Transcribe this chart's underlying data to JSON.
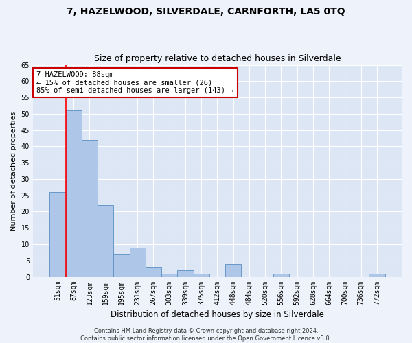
{
  "title": "7, HAZELWOOD, SILVERDALE, CARNFORTH, LA5 0TQ",
  "subtitle": "Size of property relative to detached houses in Silverdale",
  "xlabel": "Distribution of detached houses by size in Silverdale",
  "ylabel": "Number of detached properties",
  "categories": [
    "51sqm",
    "87sqm",
    "123sqm",
    "159sqm",
    "195sqm",
    "231sqm",
    "267sqm",
    "303sqm",
    "339sqm",
    "375sqm",
    "412sqm",
    "448sqm",
    "484sqm",
    "520sqm",
    "556sqm",
    "592sqm",
    "628sqm",
    "664sqm",
    "700sqm",
    "736sqm",
    "772sqm"
  ],
  "values": [
    26,
    51,
    42,
    22,
    7,
    9,
    3,
    1,
    2,
    1,
    0,
    4,
    0,
    0,
    1,
    0,
    0,
    0,
    0,
    0,
    1
  ],
  "bar_color": "#aec6e8",
  "bar_edge_color": "#5a8fc2",
  "ylim": [
    0,
    65
  ],
  "yticks": [
    0,
    5,
    10,
    15,
    20,
    25,
    30,
    35,
    40,
    45,
    50,
    55,
    60,
    65
  ],
  "annotation_line1": "7 HAZELWOOD: 88sqm",
  "annotation_line2": "← 15% of detached houses are smaller (26)",
  "annotation_line3": "85% of semi-detached houses are larger (143) →",
  "annotation_box_color": "#ffffff",
  "annotation_box_edge_color": "#cc0000",
  "footer_line1": "Contains HM Land Registry data © Crown copyright and database right 2024.",
  "footer_line2": "Contains public sector information licensed under the Open Government Licence v3.0.",
  "fig_bg_color": "#eef2fa",
  "plot_bg_color": "#dce6f5",
  "title_fontsize": 10,
  "subtitle_fontsize": 9,
  "tick_fontsize": 7,
  "ylabel_fontsize": 8,
  "xlabel_fontsize": 8.5,
  "footer_fontsize": 6,
  "annotation_fontsize": 7.5
}
